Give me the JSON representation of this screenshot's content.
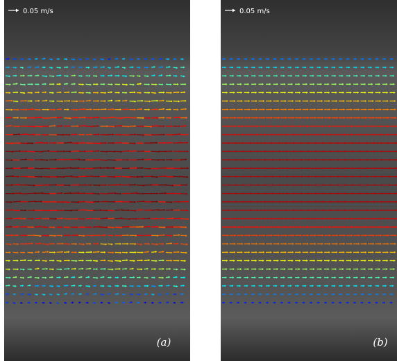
{
  "panels": [
    {
      "scale_label": "0.05 m/s",
      "panel_label": "(a)"
    },
    {
      "scale_label": "0.05 m/s",
      "panel_label": "(b)"
    }
  ]
}
